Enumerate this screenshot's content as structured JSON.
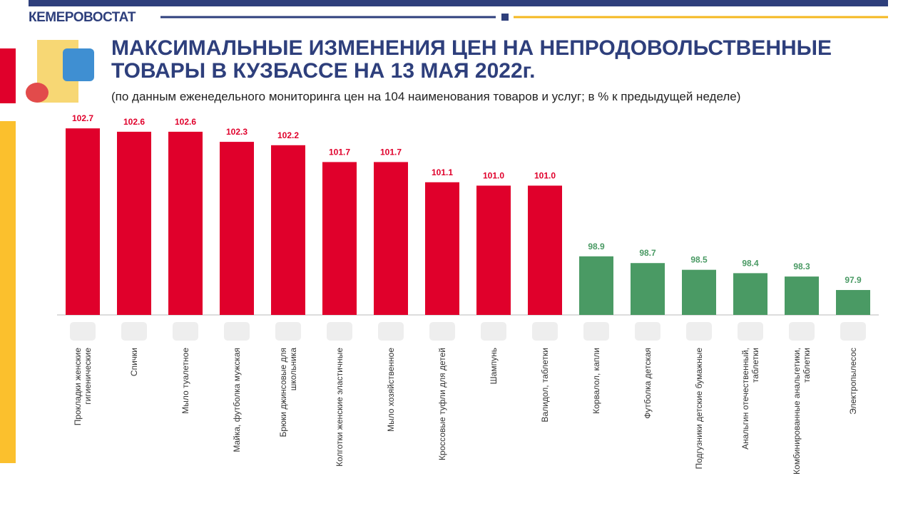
{
  "header": {
    "org": "КЕМЕРОВОСТАТ"
  },
  "chart_data": {
    "type": "bar",
    "title": "МАКСИМАЛЬНЫЕ ИЗМЕНЕНИЯ ЦЕН НА НЕПРОДОВОЛЬСТВЕННЫЕ\nТОВАРЫ В КУЗБАССЕ НА 13 МАЯ 2022г.",
    "subtitle": "(по данным еженедельного мониторинга цен на 104 наименования товаров и услуг; в % к предыдущей неделе)",
    "categories": [
      "Прокладки женские\nгигиенические",
      "Спички",
      "Мыло туалетное",
      "Майка, футболка мужская",
      "Брюки джинсовые для\nшкольника",
      "Колготки женские эластичные",
      "Мыло хозяйственное",
      "Кроссовые туфли для детей",
      "Шампунь",
      "Валидол, таблетки",
      "Корвалол, капли",
      "Футболка детская",
      "Подгузники детские бумажные",
      "Анальгин отечественный,\nтаблетки",
      "Комбинированные анальгетики,\nтаблетки",
      "Электропылесос"
    ],
    "values": [
      102.7,
      102.6,
      102.6,
      102.3,
      102.2,
      101.7,
      101.7,
      101.1,
      101.0,
      101.0,
      98.9,
      98.7,
      98.5,
      98.4,
      98.3,
      97.9
    ],
    "value_labels": [
      "102.7",
      "102.6",
      "102.6",
      "102.3",
      "102.2",
      "101.7",
      "101.7",
      "101.1",
      "101.0",
      "101.0",
      "98.9",
      "98.7",
      "98.5",
      "98.4",
      "98.3",
      "97.9"
    ],
    "colors": [
      "#e0002b",
      "#e0002b",
      "#e0002b",
      "#e0002b",
      "#e0002b",
      "#e0002b",
      "#e0002b",
      "#e0002b",
      "#e0002b",
      "#e0002b",
      "#4a9a64",
      "#4a9a64",
      "#4a9a64",
      "#4a9a64",
      "#4a9a64",
      "#4a9a64"
    ],
    "ylim": [
      97.16,
      103.0
    ]
  }
}
